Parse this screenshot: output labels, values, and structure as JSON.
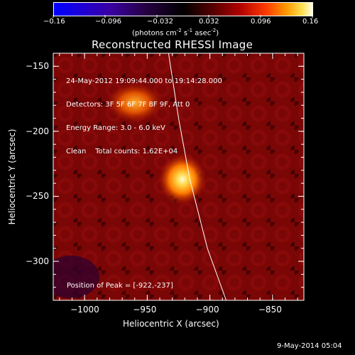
{
  "colorbar": {
    "ticks": [
      "-0.16",
      "-0.096",
      "-0.032",
      "0.032",
      "0.096",
      "0.16"
    ],
    "unit_label": "(photons cm",
    "unit_sup1": "-2",
    "unit_mid1": " s",
    "unit_sup2": "-1",
    "unit_mid2": " asec",
    "unit_sup3": "-2",
    "unit_end": ")",
    "range": [
      -0.16,
      0.16
    ]
  },
  "chart_data": {
    "type": "heatmap",
    "title": "Reconstructed RHESSI Image",
    "xlabel": "Heliocentric X (arcsec)",
    "ylabel": "Heliocentric Y (arcsec)",
    "xlim": [
      -1025,
      -825
    ],
    "ylim": [
      -330,
      -140
    ],
    "x_ticks": [
      -1000,
      -950,
      -900,
      -850
    ],
    "y_ticks": [
      -150,
      -200,
      -250,
      -300
    ],
    "x_tick_labels": [
      "−1000",
      "−950",
      "−900",
      "−850"
    ],
    "y_tick_labels": [
      "−150",
      "−200",
      "−250",
      "−300"
    ],
    "sources": [
      {
        "x": -922,
        "y": -237,
        "peak": 0.16
      },
      {
        "x": -960,
        "y": -178,
        "peak": 0.09
      }
    ],
    "limb": [
      [
        -933,
        -140
      ],
      [
        -925,
        -190
      ],
      [
        -916,
        -237
      ],
      [
        -902,
        -290
      ],
      [
        -887,
        -330
      ]
    ]
  },
  "info": {
    "line1": "24-May-2012 19:09:44.000 to 19:14:28.000",
    "line2": "Detectors: 3F 5F 6F 7F 8F 9F, Att 0",
    "line3": "Energy Range: 3.0 - 6.0 keV",
    "line4": "Clean    Total counts: 1.62E+04"
  },
  "peak_text": "Position of Peak = [-922,-237]",
  "footer_date": "9-May-2014 05:04"
}
